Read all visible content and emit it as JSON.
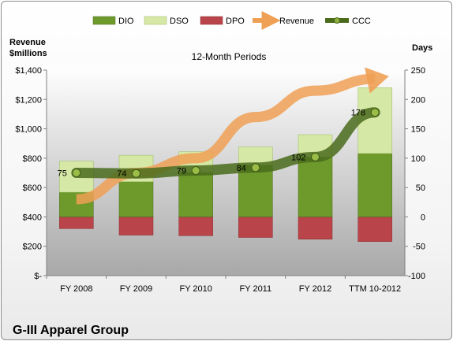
{
  "chart_data": {
    "type": "bar",
    "title": "12-Month Periods",
    "footer_title": "G-III Apparel Group",
    "categories": [
      "FY 2008",
      "FY 2009",
      "FY 2010",
      "FY 2011",
      "FY 2012",
      "TTM 10-2012"
    ],
    "left_axis": {
      "label_line1": "Revenue",
      "label_line2": "$millions",
      "range": [
        0,
        1400
      ],
      "ticks": [
        0,
        200,
        400,
        600,
        800,
        1000,
        1200,
        1400
      ],
      "tick_labels": [
        "$-",
        "$200",
        "$400",
        "$600",
        "$800",
        "$1,000",
        "$1,200",
        "$1,400"
      ]
    },
    "right_axis": {
      "label": "Days",
      "range": [
        -100,
        250
      ],
      "ticks": [
        -100,
        -50,
        0,
        50,
        100,
        150,
        200,
        250
      ],
      "tick_labels": [
        "-100",
        "-50",
        "0",
        "50",
        "100",
        "150",
        "200",
        "250"
      ]
    },
    "legend_placement": "top",
    "grid": false,
    "series": [
      {
        "name": "DIO",
        "kind": "stacked-bar",
        "color": "#6e9a2c",
        "values": [
          42,
          60,
          76,
          88,
          102,
          108
        ]
      },
      {
        "name": "DSO",
        "kind": "stacked-bar",
        "color": "#d6e8a6",
        "values": [
          53,
          45,
          35,
          31,
          38,
          112
        ]
      },
      {
        "name": "DPO",
        "kind": "stacked-bar-negative",
        "color": "#b9444a",
        "values": [
          -20,
          -31,
          -32,
          -35,
          -38,
          -42
        ]
      },
      {
        "name": "Revenue",
        "kind": "trend-arrow",
        "color": "#f0a055",
        "values": [
          30,
          75,
          100,
          170,
          215,
          235
        ]
      },
      {
        "name": "CCC",
        "kind": "line",
        "color": "#4a6b1c",
        "values": [
          75,
          74,
          79,
          84,
          102,
          178
        ],
        "data_labels": [
          "75",
          "74",
          "79",
          "84",
          "102",
          "178"
        ]
      }
    ]
  }
}
